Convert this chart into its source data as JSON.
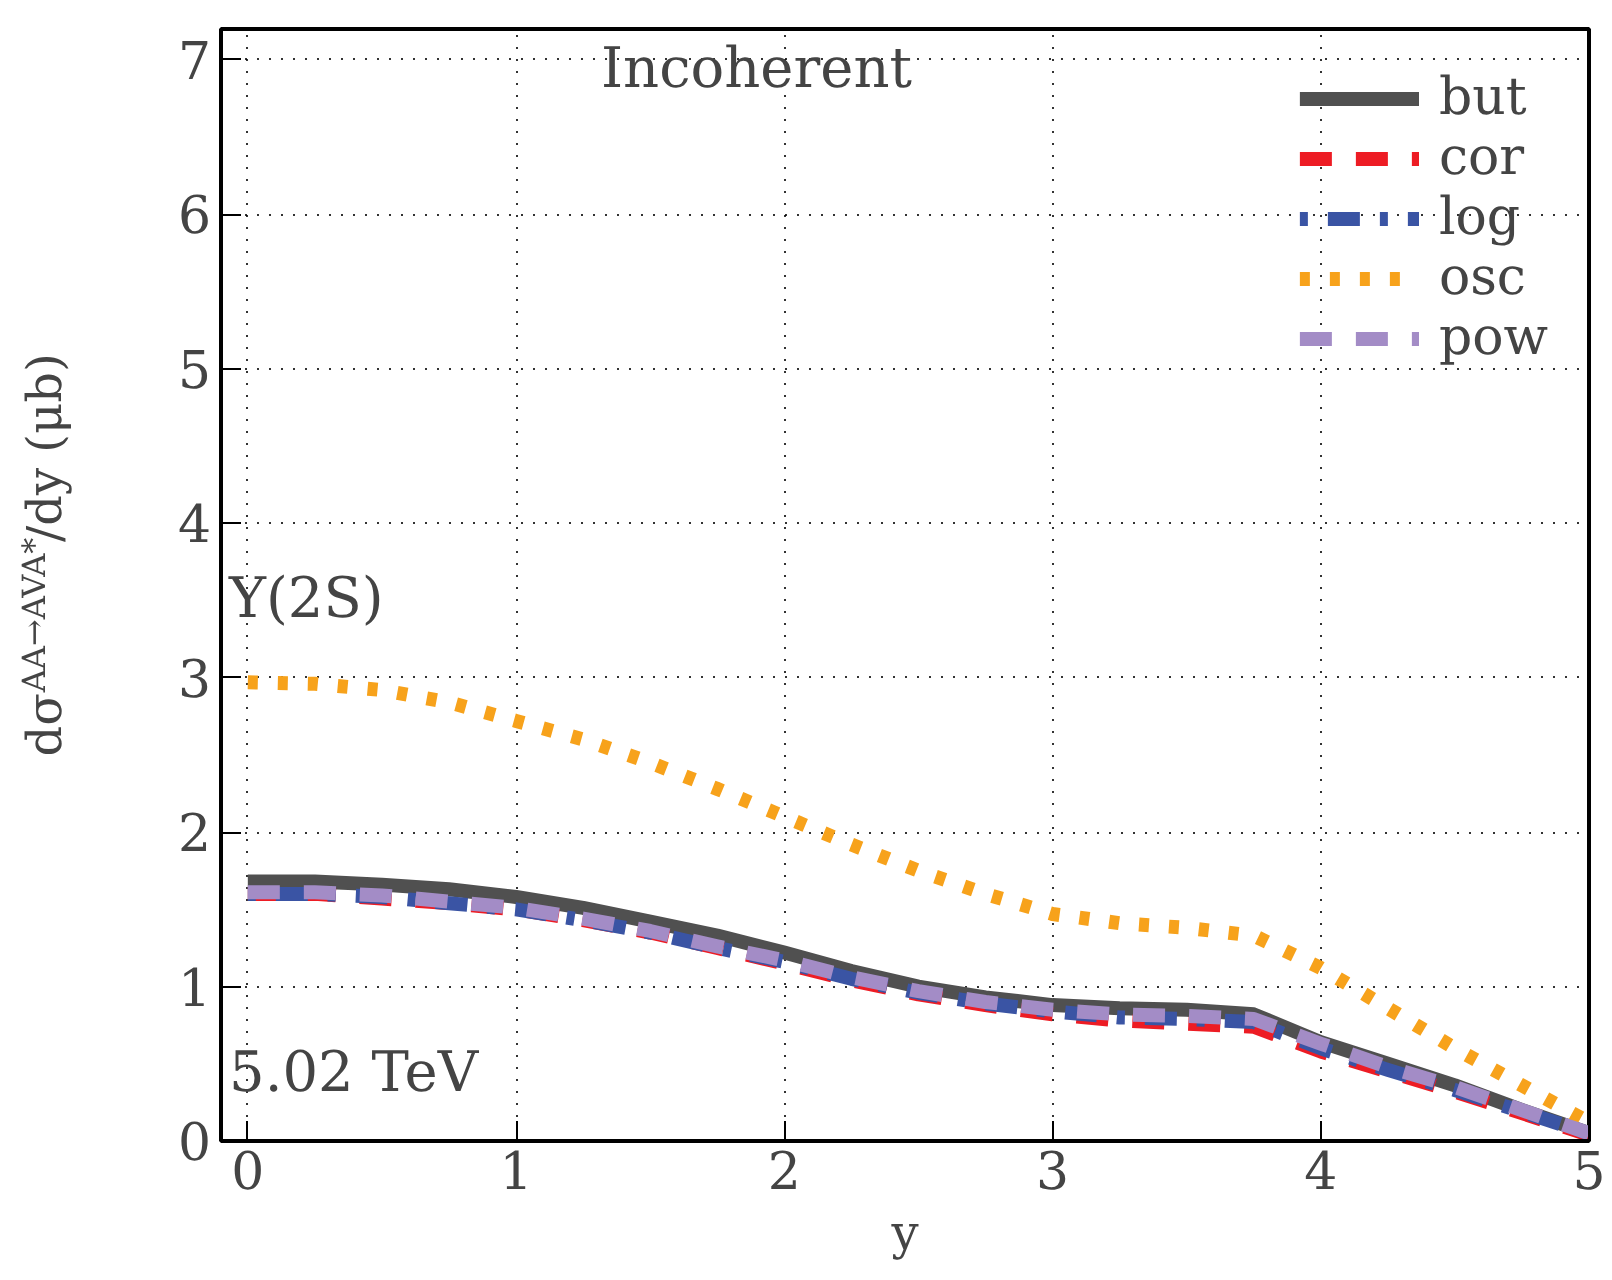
{
  "chart_data": {
    "type": "line",
    "xlabel": "y",
    "ylabel": "dσ$^{AA→AVA*}$/dy (μb)",
    "x": [
      0,
      0.25,
      0.5,
      0.75,
      1,
      1.25,
      1.5,
      1.75,
      2,
      2.25,
      2.5,
      2.75,
      3,
      3.25,
      3.5,
      3.75,
      4,
      4.25,
      4.5,
      4.75,
      5
    ],
    "series": [
      {
        "name": "but",
        "color": "#505050",
        "line_style": "solid",
        "values": [
          1.68,
          1.68,
          1.66,
          1.63,
          1.58,
          1.51,
          1.42,
          1.33,
          1.22,
          1.1,
          1.0,
          0.93,
          0.88,
          0.86,
          0.85,
          0.82,
          0.64,
          0.5,
          0.36,
          0.2,
          0.05
        ]
      },
      {
        "name": "cor",
        "color": "#ed1c24",
        "line_style": "dashed",
        "values": [
          1.6,
          1.6,
          1.57,
          1.54,
          1.5,
          1.43,
          1.35,
          1.25,
          1.15,
          1.04,
          0.95,
          0.88,
          0.82,
          0.78,
          0.76,
          0.74,
          0.58,
          0.45,
          0.32,
          0.18,
          0.04
        ]
      },
      {
        "name": "log",
        "color": "#3a54a4",
        "line_style": "dashdot",
        "values": [
          1.6,
          1.6,
          1.58,
          1.54,
          1.5,
          1.43,
          1.35,
          1.25,
          1.16,
          1.05,
          0.96,
          0.89,
          0.84,
          0.8,
          0.79,
          0.77,
          0.6,
          0.46,
          0.33,
          0.19,
          0.05
        ]
      },
      {
        "name": "osc",
        "color": "#f7a21b",
        "line_style": "dotted",
        "values": [
          2.97,
          2.96,
          2.92,
          2.84,
          2.72,
          2.6,
          2.45,
          2.28,
          2.1,
          1.92,
          1.75,
          1.6,
          1.47,
          1.41,
          1.38,
          1.33,
          1.12,
          0.86,
          0.6,
          0.36,
          0.12
        ]
      },
      {
        "name": "pow",
        "color": "#a38cc6",
        "line_style": "dashed",
        "values": [
          1.61,
          1.61,
          1.59,
          1.55,
          1.51,
          1.44,
          1.36,
          1.26,
          1.17,
          1.06,
          0.97,
          0.9,
          0.85,
          0.82,
          0.81,
          0.79,
          0.63,
          0.48,
          0.35,
          0.2,
          0.05
        ]
      }
    ],
    "xlim": [
      -0.1,
      5
    ],
    "ylim": [
      0,
      7.2
    ],
    "xticks": [
      0,
      1,
      2,
      3,
      4,
      5
    ],
    "yticks": [
      0,
      1,
      2,
      3,
      4,
      5,
      6,
      7
    ],
    "grid": true,
    "legend": "top right",
    "annotations": [
      "Incoherent",
      "Υ(2S)",
      "5.02 TeV"
    ]
  }
}
